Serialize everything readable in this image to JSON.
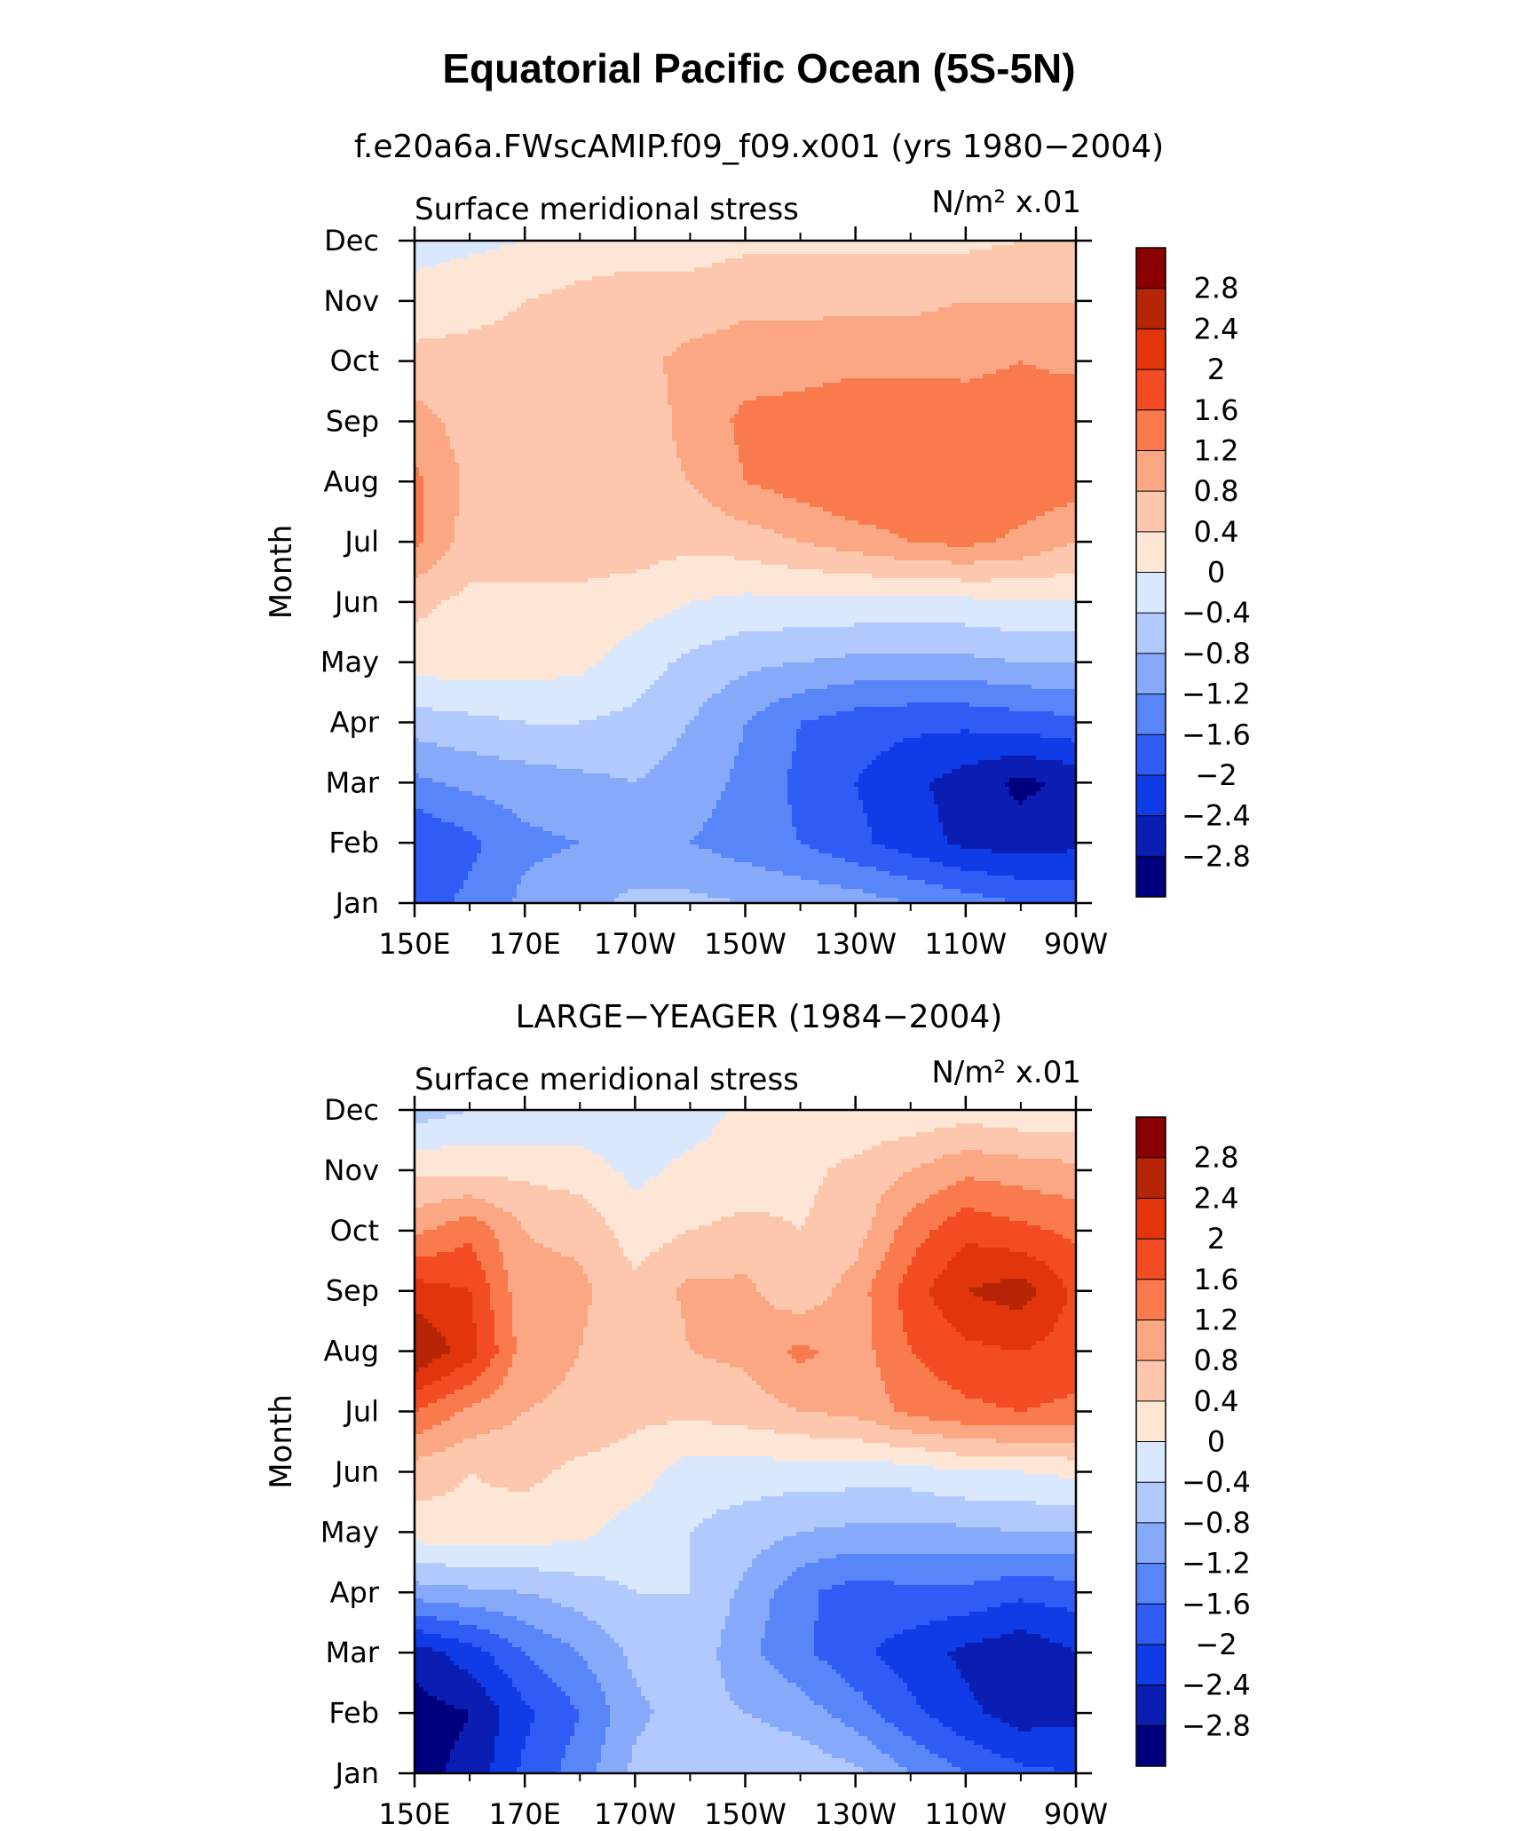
{
  "title": "Equatorial Pacific Ocean (5S-5N)",
  "colorbar": {
    "labels": [
      "2.8",
      "2.4",
      "2",
      "1.6",
      "1.2",
      "0.8",
      "0.4",
      "0",
      "−0.4",
      "−0.8",
      "−1.2",
      "−1.6",
      "−2",
      "−2.4",
      "−2.8"
    ],
    "levels": [
      -2.8,
      -2.4,
      -2.0,
      -1.6,
      -1.2,
      -0.8,
      -0.4,
      0,
      0.4,
      0.8,
      1.2,
      1.6,
      2.0,
      2.4,
      2.8
    ],
    "colors": [
      "#00007f",
      "#0a1eb4",
      "#0f3ce6",
      "#2f5cf5",
      "#5886f8",
      "#86a9fa",
      "#b1c9fc",
      "#d9e8fd",
      "#fde6d5",
      "#fcc7ad",
      "#fba783",
      "#f97a4d",
      "#f34b22",
      "#e2350c",
      "#b52506",
      "#8a0000"
    ]
  },
  "chart_data": [
    {
      "type": "heatmap",
      "subtitle": "f.e20a6a.FWscAMIP.f09_f09.x001 (yrs 1980−2004)",
      "left_label": "Surface meridional stress",
      "units": "N/m² x.01",
      "ylabel": "Month",
      "xlabel": "",
      "x_ticks": [
        "150E",
        "170E",
        "170W",
        "150W",
        "130W",
        "110W",
        "90W"
      ],
      "y_ticks": [
        "Jan",
        "Feb",
        "Mar",
        "Apr",
        "May",
        "Jun",
        "Jul",
        "Aug",
        "Sep",
        "Oct",
        "Nov",
        "Dec"
      ],
      "x": [
        150,
        160,
        170,
        180,
        190,
        200,
        210,
        220,
        230,
        240,
        250,
        260,
        270
      ],
      "y": [
        "Jan",
        "Feb",
        "Mar",
        "Apr",
        "May",
        "Jun",
        "Jul",
        "Aug",
        "Sep",
        "Oct",
        "Nov",
        "Dec"
      ],
      "z": [
        [
          -1.8,
          -1.5,
          -1.1,
          -0.9,
          -0.7,
          -0.7,
          -0.8,
          -0.9,
          -1.0,
          -1.2,
          -1.4,
          -1.6,
          -1.7
        ],
        [
          -2.0,
          -1.7,
          -1.3,
          -1.2,
          -1.1,
          -1.2,
          -1.4,
          -1.6,
          -1.9,
          -2.2,
          -2.5,
          -2.6,
          -2.5
        ],
        [
          -1.3,
          -1.1,
          -1.0,
          -0.9,
          -0.8,
          -1.0,
          -1.3,
          -1.7,
          -2.0,
          -2.3,
          -2.6,
          -2.9,
          -2.7
        ],
        [
          -0.6,
          -0.5,
          -0.4,
          -0.4,
          -0.5,
          -0.8,
          -1.2,
          -1.6,
          -1.8,
          -1.9,
          -1.9,
          -1.8,
          -1.7
        ],
        [
          0.2,
          0.2,
          0.2,
          0.1,
          -0.2,
          -0.5,
          -0.7,
          -0.8,
          -0.9,
          -0.9,
          -0.9,
          -0.8,
          -0.8
        ],
        [
          0.5,
          0.3,
          0.3,
          0.3,
          0.2,
          0.0,
          -0.1,
          -0.1,
          -0.1,
          -0.1,
          -0.1,
          0.0,
          0.0
        ],
        [
          1.3,
          0.6,
          0.6,
          0.6,
          0.6,
          0.5,
          0.6,
          0.8,
          1.0,
          1.2,
          1.3,
          1.1,
          0.8
        ],
        [
          1.3,
          0.7,
          0.6,
          0.6,
          0.7,
          0.8,
          1.2,
          1.4,
          1.6,
          1.6,
          1.6,
          1.5,
          1.4
        ],
        [
          1.0,
          0.6,
          0.6,
          0.6,
          0.6,
          0.9,
          1.3,
          1.4,
          1.5,
          1.5,
          1.4,
          1.4,
          1.5
        ],
        [
          0.5,
          0.5,
          0.5,
          0.6,
          0.7,
          0.9,
          1.0,
          1.0,
          1.1,
          1.1,
          1.1,
          1.2,
          1.1
        ],
        [
          0.2,
          0.3,
          0.4,
          0.5,
          0.6,
          0.6,
          0.7,
          0.7,
          0.7,
          0.7,
          0.8,
          0.8,
          0.8
        ],
        [
          -0.2,
          -0.1,
          0.0,
          0.2,
          0.2,
          0.2,
          0.3,
          0.3,
          0.3,
          0.3,
          0.3,
          0.4,
          0.4
        ]
      ]
    },
    {
      "type": "heatmap",
      "subtitle": "LARGE−YEAGER (1984−2004)",
      "left_label": "Surface meridional stress",
      "units": "N/m² x.01",
      "ylabel": "Month",
      "xlabel": "",
      "x_ticks": [
        "150E",
        "170E",
        "170W",
        "150W",
        "130W",
        "110W",
        "90W"
      ],
      "y_ticks": [
        "Jan",
        "Feb",
        "Mar",
        "Apr",
        "May",
        "Jun",
        "Jul",
        "Aug",
        "Sep",
        "Oct",
        "Nov",
        "Dec"
      ],
      "x": [
        150,
        160,
        170,
        180,
        190,
        200,
        210,
        220,
        230,
        240,
        250,
        260,
        270
      ],
      "y": [
        "Jan",
        "Feb",
        "Mar",
        "Apr",
        "May",
        "Jun",
        "Jul",
        "Aug",
        "Sep",
        "Oct",
        "Nov",
        "Dec"
      ],
      "z": [
        [
          -2.9,
          -2.7,
          -1.9,
          -1.4,
          -0.7,
          -0.5,
          -0.4,
          -0.5,
          -0.7,
          -1.2,
          -1.6,
          -1.9,
          -2.0
        ],
        [
          -3.0,
          -2.8,
          -2.1,
          -1.6,
          -0.9,
          -0.6,
          -0.8,
          -1.0,
          -1.4,
          -1.9,
          -2.3,
          -2.6,
          -2.5
        ],
        [
          -2.6,
          -2.2,
          -1.6,
          -1.2,
          -0.7,
          -0.5,
          -1.1,
          -1.5,
          -1.9,
          -2.2,
          -2.5,
          -2.7,
          -2.4
        ],
        [
          -1.0,
          -0.9,
          -0.8,
          -0.6,
          -0.4,
          -0.4,
          -0.9,
          -1.5,
          -1.8,
          -1.7,
          -1.7,
          -1.9,
          -1.8
        ],
        [
          0.2,
          0.3,
          0.2,
          0.1,
          -0.2,
          -0.4,
          -0.6,
          -0.8,
          -0.9,
          -0.9,
          -0.9,
          -0.8,
          -0.8
        ],
        [
          0.6,
          0.4,
          0.5,
          0.3,
          0.2,
          -0.2,
          -0.2,
          -0.2,
          -0.2,
          -0.2,
          0.0,
          0.0,
          0.1
        ],
        [
          1.6,
          1.1,
          0.8,
          0.7,
          0.5,
          0.5,
          0.6,
          0.8,
          0.9,
          1.3,
          1.5,
          1.6,
          1.5
        ],
        [
          2.8,
          2.2,
          1.0,
          0.8,
          0.4,
          0.8,
          0.9,
          1.3,
          1.0,
          1.6,
          1.9,
          2.0,
          1.8
        ],
        [
          2.2,
          2.0,
          0.9,
          0.9,
          0.5,
          0.9,
          0.9,
          0.5,
          1.0,
          1.8,
          2.4,
          2.6,
          1.9
        ],
        [
          1.1,
          1.5,
          0.8,
          0.7,
          0.2,
          0.4,
          0.5,
          0.4,
          0.6,
          1.4,
          1.9,
          1.7,
          1.5
        ],
        [
          0.3,
          0.3,
          0.3,
          0.2,
          -0.1,
          0.1,
          0.2,
          0.3,
          0.5,
          0.8,
          1.1,
          1.0,
          0.9
        ],
        [
          -0.6,
          -0.4,
          -0.4,
          -0.3,
          -0.3,
          -0.2,
          0.1,
          0.1,
          0.1,
          0.1,
          0.2,
          0.1,
          0.1
        ]
      ]
    }
  ]
}
